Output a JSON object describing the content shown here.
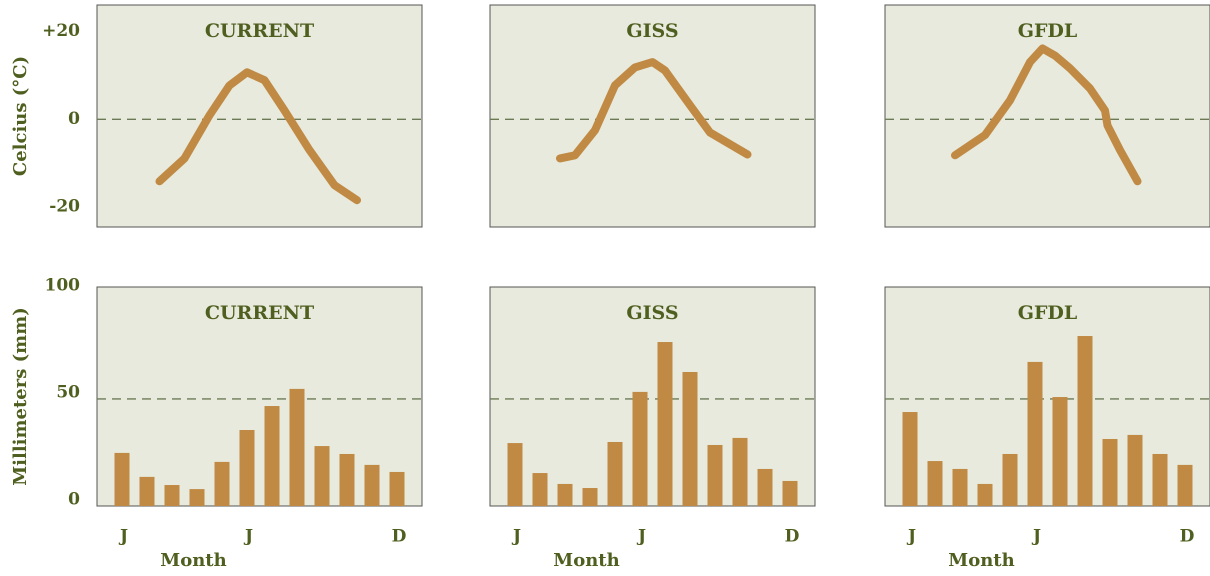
{
  "chart_data": [
    {
      "type": "line",
      "title": "CURRENT",
      "ylabel": "Celcius (°C)",
      "color": "#c08a45",
      "x": [
        2.5,
        3.5,
        4.5,
        5.3,
        6,
        6.7,
        7.5,
        8.5,
        9.5,
        10.4
      ],
      "values": [
        -14.1,
        -8.9,
        0.9,
        7.7,
        10.7,
        8.9,
        2.0,
        -7.0,
        -15.0,
        -18.4
      ],
      "xlim": [
        0,
        13
      ],
      "ylim": [
        -24.5,
        26
      ],
      "yticks": [
        {
          "value": 20,
          "label": "+20"
        },
        0,
        -20
      ],
      "reference_line": 0
    },
    {
      "type": "line",
      "title": "GISS",
      "color": "#c08a45",
      "x": [
        2.8,
        3.4,
        4.2,
        5.0,
        5.8,
        6.5,
        7.0,
        8.0,
        8.8,
        10.3
      ],
      "values": [
        -8.9,
        -8.2,
        -2.5,
        7.7,
        11.8,
        13.0,
        11.1,
        3.2,
        -3.0,
        -8.0
      ],
      "xlim": [
        0,
        13
      ],
      "ylim": [
        -24.5,
        26
      ],
      "reference_line": 0
    },
    {
      "type": "line",
      "title": "GFDL",
      "color": "#c08a45",
      "x": [
        2.8,
        4.0,
        5.0,
        5.8,
        6.3,
        6.8,
        7.4,
        8.2,
        8.8,
        8.9,
        9.4,
        10.1
      ],
      "values": [
        -8.2,
        -3.6,
        4.3,
        13.0,
        16.1,
        14.5,
        11.6,
        7.0,
        2.0,
        -1.4,
        -7.0,
        -14.1
      ],
      "xlim": [
        0,
        13
      ],
      "ylim": [
        -24.5,
        26
      ],
      "reference_line": 0
    },
    {
      "type": "bar",
      "title": "CURRENT",
      "ylabel": "Millimeters (mm)",
      "xlabel": "Month",
      "color": "#c08a45",
      "categories": [
        "J",
        null,
        null,
        null,
        null,
        "J",
        null,
        null,
        null,
        null,
        null,
        "D"
      ],
      "values": [
        24.8,
        13.6,
        9.8,
        7.9,
        20.6,
        35.5,
        46.7,
        54.7,
        28.0,
        24.3,
        19.2,
        15.9
      ],
      "ylim": [
        0,
        102.3
      ],
      "yticks": [
        100,
        50,
        0
      ],
      "reference_line": 50
    },
    {
      "type": "bar",
      "title": "GISS",
      "xlabel": "Month",
      "color": "#c08a45",
      "categories": [
        "J",
        null,
        null,
        null,
        null,
        "J",
        null,
        null,
        null,
        null,
        null,
        "D"
      ],
      "values": [
        29.4,
        15.4,
        10.3,
        8.4,
        29.9,
        53.3,
        76.6,
        62.6,
        28.5,
        31.8,
        17.3,
        11.7
      ],
      "ylim": [
        0,
        102.3
      ],
      "reference_line": 50
    },
    {
      "type": "bar",
      "title": "GFDL",
      "xlabel": "Month",
      "color": "#c08a45",
      "categories": [
        "J",
        null,
        null,
        null,
        null,
        "J",
        null,
        null,
        null,
        null,
        null,
        "D"
      ],
      "values": [
        43.9,
        21.0,
        17.3,
        10.3,
        24.3,
        67.3,
        50.9,
        79.4,
        31.3,
        33.2,
        24.3,
        19.2
      ],
      "ylim": [
        0,
        102.3
      ],
      "reference_line": 50
    }
  ]
}
